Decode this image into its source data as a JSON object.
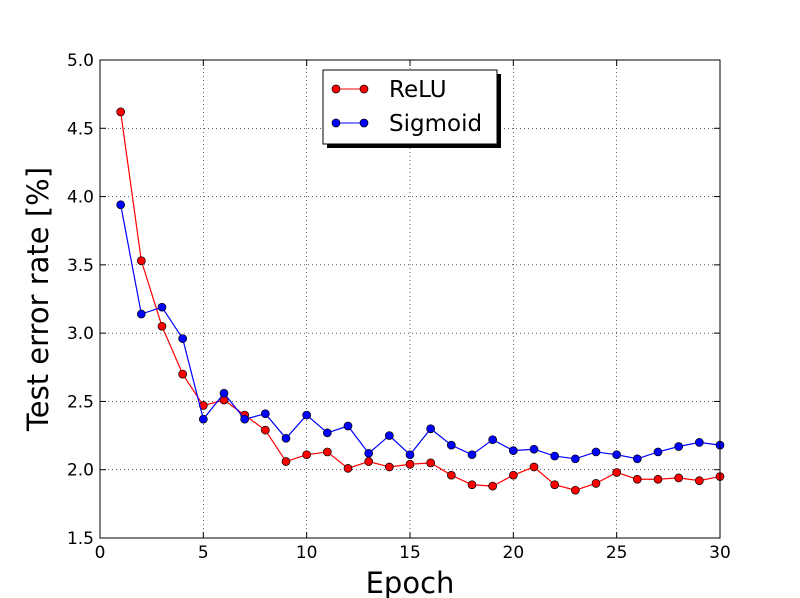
{
  "chart_data": {
    "type": "line",
    "xlabel": "Epoch",
    "ylabel": "Test error rate [%]",
    "xlim": [
      0,
      30
    ],
    "ylim": [
      1.5,
      5.0
    ],
    "xticks": [
      "0",
      "5",
      "10",
      "15",
      "20",
      "25",
      "30"
    ],
    "yticks": [
      "1.5",
      "2.0",
      "2.5",
      "3.0",
      "3.5",
      "4.0",
      "4.5",
      "5.0"
    ],
    "grid": true,
    "legend_position": "top-center",
    "x": [
      1,
      2,
      3,
      4,
      5,
      6,
      7,
      8,
      9,
      10,
      11,
      12,
      13,
      14,
      15,
      16,
      17,
      18,
      19,
      20,
      21,
      22,
      23,
      24,
      25,
      26,
      27,
      28,
      29,
      30
    ],
    "series": [
      {
        "name": "ReLU",
        "color": "#ff0000",
        "values": [
          4.62,
          3.53,
          3.05,
          2.7,
          2.47,
          2.51,
          2.4,
          2.29,
          2.06,
          2.11,
          2.13,
          2.01,
          2.06,
          2.02,
          2.04,
          2.05,
          1.96,
          1.89,
          1.88,
          1.96,
          2.02,
          1.89,
          1.85,
          1.9,
          1.98,
          1.93,
          1.93,
          1.94,
          1.92,
          1.95
        ]
      },
      {
        "name": "Sigmoid",
        "color": "#0000ff",
        "values": [
          3.94,
          3.14,
          3.19,
          2.96,
          2.37,
          2.56,
          2.37,
          2.41,
          2.23,
          2.4,
          2.27,
          2.32,
          2.12,
          2.25,
          2.11,
          2.3,
          2.18,
          2.11,
          2.22,
          2.14,
          2.15,
          2.1,
          2.08,
          2.13,
          2.11,
          2.08,
          2.13,
          2.17,
          2.2,
          2.18
        ]
      }
    ]
  }
}
